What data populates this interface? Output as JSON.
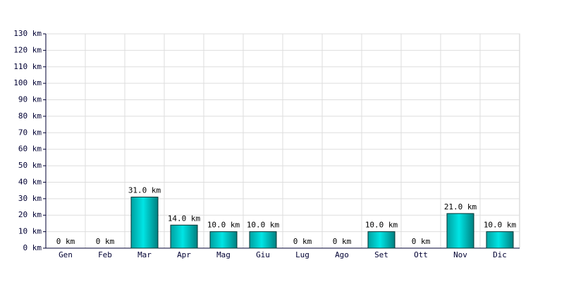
{
  "chart_data": {
    "type": "bar",
    "categories": [
      "Gen",
      "Feb",
      "Mar",
      "Apr",
      "Mag",
      "Giu",
      "Lug",
      "Ago",
      "Set",
      "Ott",
      "Nov",
      "Dic"
    ],
    "values": [
      0,
      0,
      31,
      14,
      10,
      10,
      0,
      0,
      10,
      0,
      21,
      10
    ],
    "value_labels": [
      "0 km",
      "0 km",
      "31.0 km",
      "14.0 km",
      "10.0 km",
      "10.0 km",
      "0 km",
      "0 km",
      "10.0 km",
      "0 km",
      "21.0 km",
      "10.0 km"
    ],
    "color": "#00e5e5",
    "ylim": [
      0,
      130
    ],
    "yticks": [
      {
        "value": 0,
        "label": "0 km"
      },
      {
        "value": 10,
        "label": "10 km"
      },
      {
        "value": 20,
        "label": "20 km"
      },
      {
        "value": 30,
        "label": "30 km"
      },
      {
        "value": 40,
        "label": "40 km"
      },
      {
        "value": 50,
        "label": "50 km"
      },
      {
        "value": 60,
        "label": "60 km"
      },
      {
        "value": 70,
        "label": "70 km"
      },
      {
        "value": 80,
        "label": "80 km"
      },
      {
        "value": 90,
        "label": "90 km"
      },
      {
        "value": 100,
        "label": "100 km"
      },
      {
        "value": 110,
        "label": "110 km"
      },
      {
        "value": 120,
        "label": "120 km"
      },
      {
        "value": 130,
        "label": "130 km"
      }
    ],
    "grid": true
  }
}
